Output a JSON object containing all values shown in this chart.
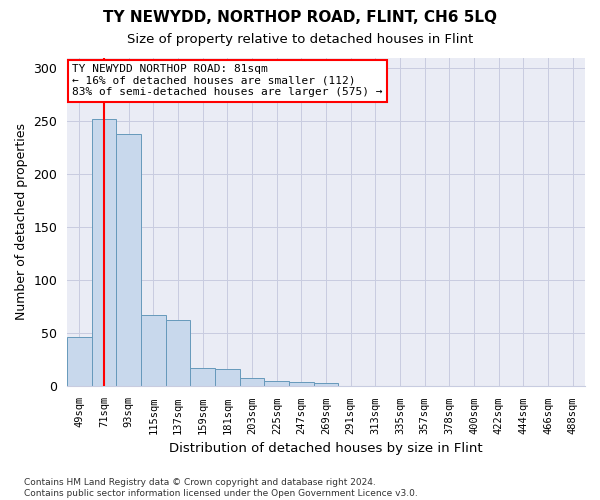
{
  "title1": "TY NEWYDD, NORTHOP ROAD, FLINT, CH6 5LQ",
  "title2": "Size of property relative to detached houses in Flint",
  "xlabel": "Distribution of detached houses by size in Flint",
  "ylabel": "Number of detached properties",
  "footer": "Contains HM Land Registry data © Crown copyright and database right 2024.\nContains public sector information licensed under the Open Government Licence v3.0.",
  "categories": [
    "49sqm",
    "71sqm",
    "93sqm",
    "115sqm",
    "137sqm",
    "159sqm",
    "181sqm",
    "203sqm",
    "225sqm",
    "247sqm",
    "269sqm",
    "291sqm",
    "313sqm",
    "335sqm",
    "357sqm",
    "378sqm",
    "400sqm",
    "422sqm",
    "444sqm",
    "466sqm",
    "488sqm"
  ],
  "values": [
    47,
    252,
    238,
    67,
    63,
    17,
    16,
    8,
    5,
    4,
    3,
    0,
    0,
    0,
    0,
    0,
    0,
    0,
    0,
    0,
    0
  ],
  "bar_color": "#c8d8ec",
  "bar_edge_color": "#6699bb",
  "vline_x": 1.0,
  "vline_color": "red",
  "annotation_text": "TY NEWYDD NORTHOP ROAD: 81sqm\n← 16% of detached houses are smaller (112)\n83% of semi-detached houses are larger (575) →",
  "annotation_box_color": "white",
  "annotation_box_edge": "red",
  "ylim": [
    0,
    310
  ],
  "yticks": [
    0,
    50,
    100,
    150,
    200,
    250,
    300
  ],
  "grid_color": "#c8cce0",
  "bg_color": "#eaecf5"
}
